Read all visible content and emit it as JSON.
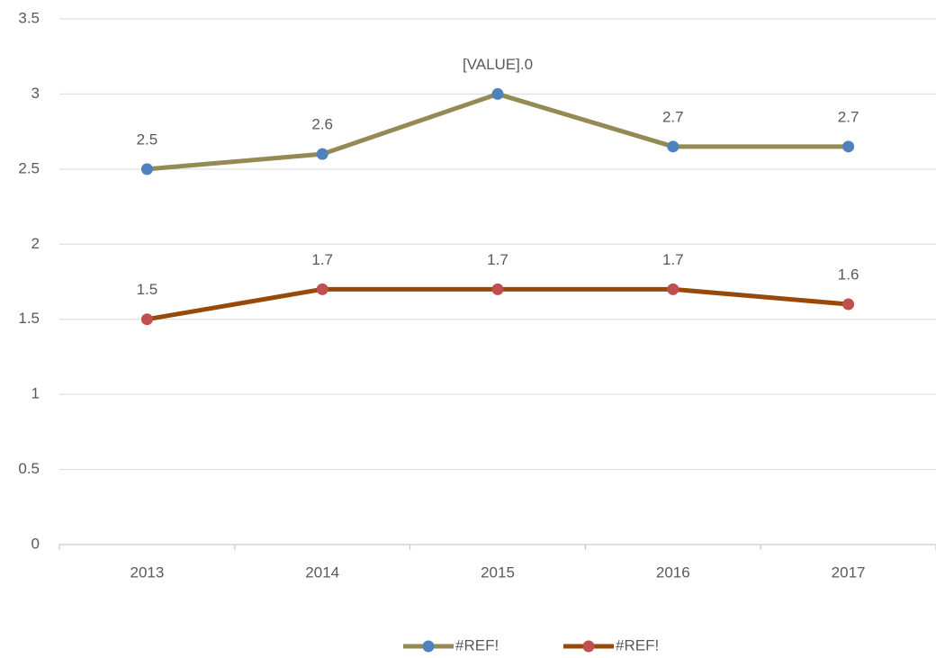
{
  "chart_data": {
    "type": "line",
    "categories": [
      "2013",
      "2014",
      "2015",
      "2016",
      "2017"
    ],
    "series": [
      {
        "name": "#REF!",
        "color": "#948a54",
        "marker_color": "#4f81bd",
        "values": [
          2.5,
          2.6,
          3.0,
          2.65,
          2.65
        ],
        "value_labels": [
          "2.5",
          "2.6",
          "[VALUE].0",
          "2.7",
          "2.7"
        ]
      },
      {
        "name": "#REF!",
        "color": "#984807",
        "marker_color": "#c0504d",
        "values": [
          1.5,
          1.7,
          1.7,
          1.7,
          1.6
        ],
        "value_labels": [
          "1.5",
          "1.7",
          "1.7",
          "1.7",
          "1.6"
        ]
      }
    ],
    "ylim": [
      0,
      3.5
    ],
    "yticks": [
      0,
      0.5,
      1,
      1.5,
      2,
      2.5,
      3,
      3.5
    ],
    "grid": true,
    "legend": "bottom"
  }
}
